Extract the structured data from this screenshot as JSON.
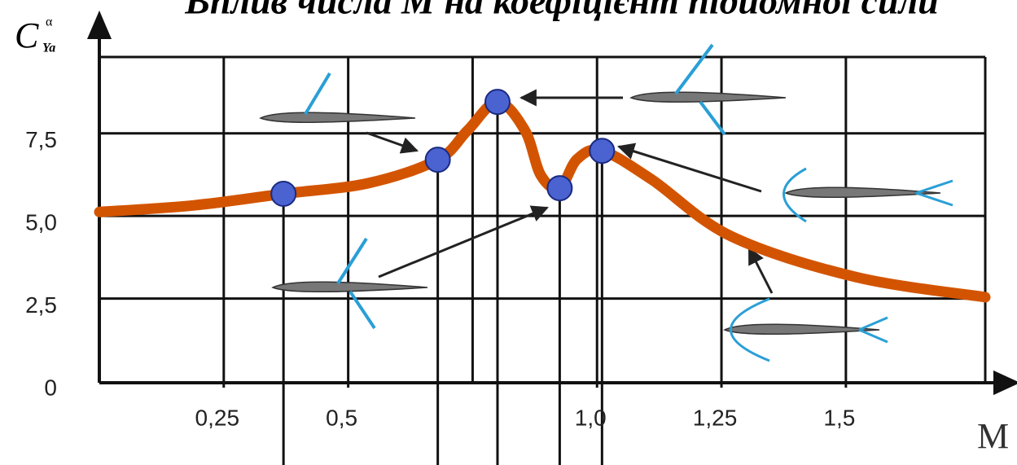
{
  "chart_data": {
    "type": "line",
    "title": "Вплив числа М на коефіцієнт підйомної сили",
    "y_label": "C",
    "y_label_sub": "Ya",
    "y_label_sup": "α",
    "x_label": "M",
    "xlim": [
      0,
      1.78
    ],
    "ylim": [
      0,
      10.5
    ],
    "xticks": [
      {
        "value": 0.25,
        "label": "0,25"
      },
      {
        "value": 0.5,
        "label": "0,5"
      },
      {
        "value": 1.0,
        "label": "1,0"
      },
      {
        "value": 1.25,
        "label": "1,25"
      },
      {
        "value": 1.5,
        "label": "1,5"
      }
    ],
    "xgrid": [
      0.25,
      0.5,
      0.75,
      1.0,
      1.25,
      1.5
    ],
    "yticks": [
      0,
      {
        "value": 2.5,
        "label": "2,5"
      },
      {
        "value": 5.0,
        "label": "5,0"
      },
      {
        "value": 7.5,
        "label": "7,5"
      }
    ],
    "grid": true,
    "series": [
      {
        "color": "#d35400",
        "x": [
          0,
          0.19,
          0.37,
          0.54,
          0.68,
          0.74,
          0.8,
          0.855,
          0.887,
          0.925,
          0.96,
          1.01,
          1.11,
          1.27,
          1.52,
          1.78
        ],
        "values": [
          5.12,
          5.32,
          5.67,
          5.99,
          6.7,
          7.59,
          8.45,
          7.59,
          6.23,
          5.84,
          6.72,
          6.97,
          6.1,
          4.38,
          3.15,
          2.54
        ]
      },
      {
        "type": "scatter",
        "color": "#4a63d0",
        "x": [
          0.37,
          0.68,
          0.8,
          0.925,
          1.01
        ],
        "values": [
          5.67,
          6.7,
          8.45,
          5.84,
          6.97
        ]
      }
    ]
  }
}
